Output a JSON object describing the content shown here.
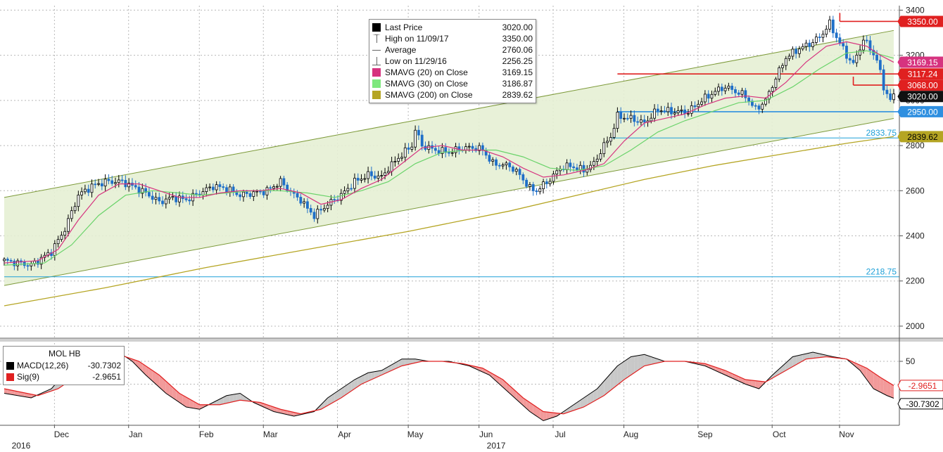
{
  "chart_data": {
    "type": "candlestick",
    "ticker": "MOL HB",
    "colors": {
      "up": "#000000",
      "down": "#1f6fc8",
      "sma20": "#d6337f",
      "sma30": "#6ad36a",
      "sma200": "#b5a523",
      "channel_fill": "#e6efd4",
      "channel_line": "#7d9a3a",
      "hline_red": "#e02020",
      "hline_blue": "#2e8fe0",
      "fib_text": "#1ea0d8",
      "macd_line": "#000000",
      "sig_line": "#e02020"
    },
    "price_axis": {
      "min": 1950,
      "max": 3420,
      "ticks": [
        "3400",
        "3200",
        "3000",
        "2800",
        "2600",
        "2400",
        "2200",
        "2000"
      ],
      "tick_values": [
        3400,
        3200,
        3000,
        2800,
        2600,
        2400,
        2200,
        2000
      ]
    },
    "time_axis": {
      "months": [
        "Dec",
        "Jan",
        "Feb",
        "Mar",
        "Apr",
        "May",
        "Jun",
        "Jul",
        "Aug",
        "Sep",
        "Oct",
        "Nov"
      ],
      "month_index": [
        17,
        39,
        60,
        79,
        101,
        122,
        143,
        165,
        186,
        208,
        230,
        250
      ],
      "years": [
        "2016",
        "2017"
      ],
      "year_index": [
        5,
        146
      ],
      "total_days": 265
    },
    "close_path": [
      [
        0,
        2290
      ],
      [
        8,
        2270
      ],
      [
        14,
        2330
      ],
      [
        18,
        2430
      ],
      [
        22,
        2580
      ],
      [
        26,
        2620
      ],
      [
        30,
        2640
      ],
      [
        35,
        2640
      ],
      [
        38,
        2620
      ],
      [
        42,
        2590
      ],
      [
        46,
        2550
      ],
      [
        50,
        2570
      ],
      [
        54,
        2560
      ],
      [
        58,
        2590
      ],
      [
        62,
        2620
      ],
      [
        66,
        2610
      ],
      [
        70,
        2580
      ],
      [
        74,
        2590
      ],
      [
        78,
        2600
      ],
      [
        82,
        2640
      ],
      [
        86,
        2580
      ],
      [
        88,
        2560
      ],
      [
        90,
        2520
      ],
      [
        92,
        2490
      ],
      [
        96,
        2540
      ],
      [
        100,
        2580
      ],
      [
        104,
        2640
      ],
      [
        108,
        2670
      ],
      [
        112,
        2660
      ],
      [
        114,
        2700
      ],
      [
        118,
        2760
      ],
      [
        121,
        2800
      ],
      [
        122,
        2870
      ],
      [
        124,
        2800
      ],
      [
        128,
        2780
      ],
      [
        132,
        2770
      ],
      [
        136,
        2790
      ],
      [
        140,
        2790
      ],
      [
        142,
        2780
      ],
      [
        145,
        2720
      ],
      [
        150,
        2710
      ],
      [
        153,
        2670
      ],
      [
        156,
        2610
      ],
      [
        158,
        2600
      ],
      [
        162,
        2650
      ],
      [
        165,
        2700
      ],
      [
        168,
        2710
      ],
      [
        172,
        2690
      ],
      [
        175,
        2720
      ],
      [
        178,
        2800
      ],
      [
        180,
        2840
      ],
      [
        182,
        2930
      ],
      [
        186,
        2920
      ],
      [
        190,
        2900
      ],
      [
        194,
        2960
      ],
      [
        198,
        2950
      ],
      [
        203,
        2950
      ],
      [
        207,
        3000
      ],
      [
        211,
        3040
      ],
      [
        214,
        3060
      ],
      [
        217,
        3040
      ],
      [
        220,
        3020
      ],
      [
        223,
        2960
      ],
      [
        226,
        3000
      ],
      [
        229,
        3100
      ],
      [
        232,
        3190
      ],
      [
        236,
        3230
      ],
      [
        239,
        3250
      ],
      [
        242,
        3280
      ],
      [
        245,
        3340
      ],
      [
        247,
        3280
      ],
      [
        250,
        3200
      ],
      [
        252,
        3160
      ],
      [
        255,
        3270
      ],
      [
        257,
        3230
      ],
      [
        259,
        3180
      ],
      [
        261,
        3060
      ],
      [
        263,
        3000
      ],
      [
        264,
        3020
      ]
    ],
    "sma20_path": [
      [
        0,
        2280
      ],
      [
        10,
        2290
      ],
      [
        16,
        2340
      ],
      [
        22,
        2470
      ],
      [
        28,
        2580
      ],
      [
        34,
        2630
      ],
      [
        40,
        2630
      ],
      [
        46,
        2600
      ],
      [
        52,
        2570
      ],
      [
        58,
        2570
      ],
      [
        64,
        2590
      ],
      [
        70,
        2600
      ],
      [
        76,
        2600
      ],
      [
        82,
        2610
      ],
      [
        88,
        2590
      ],
      [
        94,
        2540
      ],
      [
        100,
        2560
      ],
      [
        106,
        2610
      ],
      [
        112,
        2650
      ],
      [
        118,
        2720
      ],
      [
        124,
        2790
      ],
      [
        130,
        2800
      ],
      [
        136,
        2780
      ],
      [
        142,
        2780
      ],
      [
        148,
        2750
      ],
      [
        154,
        2700
      ],
      [
        160,
        2660
      ],
      [
        166,
        2670
      ],
      [
        172,
        2690
      ],
      [
        178,
        2720
      ],
      [
        184,
        2820
      ],
      [
        190,
        2900
      ],
      [
        196,
        2920
      ],
      [
        202,
        2940
      ],
      [
        208,
        2980
      ],
      [
        214,
        3010
      ],
      [
        220,
        3020
      ],
      [
        226,
        3010
      ],
      [
        232,
        3080
      ],
      [
        238,
        3170
      ],
      [
        244,
        3240
      ],
      [
        250,
        3260
      ],
      [
        256,
        3240
      ],
      [
        260,
        3200
      ],
      [
        264,
        3169
      ]
    ],
    "sma30_path": [
      [
        0,
        2270
      ],
      [
        12,
        2280
      ],
      [
        20,
        2360
      ],
      [
        28,
        2490
      ],
      [
        36,
        2580
      ],
      [
        44,
        2600
      ],
      [
        52,
        2590
      ],
      [
        58,
        2580
      ],
      [
        66,
        2590
      ],
      [
        74,
        2600
      ],
      [
        82,
        2600
      ],
      [
        90,
        2590
      ],
      [
        98,
        2570
      ],
      [
        106,
        2600
      ],
      [
        114,
        2640
      ],
      [
        122,
        2720
      ],
      [
        130,
        2770
      ],
      [
        138,
        2780
      ],
      [
        146,
        2780
      ],
      [
        154,
        2750
      ],
      [
        162,
        2700
      ],
      [
        170,
        2690
      ],
      [
        178,
        2710
      ],
      [
        186,
        2780
      ],
      [
        194,
        2860
      ],
      [
        202,
        2910
      ],
      [
        210,
        2950
      ],
      [
        218,
        2990
      ],
      [
        226,
        3000
      ],
      [
        234,
        3060
      ],
      [
        242,
        3140
      ],
      [
        250,
        3210
      ],
      [
        256,
        3220
      ],
      [
        264,
        3187
      ]
    ],
    "sma200_path": [
      [
        0,
        2090
      ],
      [
        30,
        2170
      ],
      [
        60,
        2260
      ],
      [
        90,
        2340
      ],
      [
        120,
        2420
      ],
      [
        150,
        2510
      ],
      [
        170,
        2580
      ],
      [
        190,
        2650
      ],
      [
        210,
        2710
      ],
      [
        230,
        2760
      ],
      [
        250,
        2810
      ],
      [
        264,
        2840
      ]
    ],
    "channel": {
      "upper": [
        [
          0,
          2570
        ],
        [
          264,
          3310
        ]
      ],
      "lower": [
        [
          0,
          2180
        ],
        [
          264,
          2920
        ]
      ]
    },
    "hlines": [
      {
        "value": 3350,
        "from": 248,
        "color": "red"
      },
      {
        "value": 3117.24,
        "from": 182,
        "color": "red"
      },
      {
        "value": 3068,
        "from": 252,
        "color": "red"
      },
      {
        "value": 2950,
        "from": 182,
        "color": "blue"
      },
      {
        "value": 2833.75,
        "from": 180,
        "color": "fib"
      },
      {
        "value": 2218.75,
        "from": 0,
        "color": "fib"
      }
    ],
    "fib_labels": [
      {
        "text": "2833.75",
        "value": 2833.75
      },
      {
        "text": "2218.75",
        "value": 2218.75
      }
    ],
    "tags": [
      {
        "text": "3350.00",
        "value": 3350,
        "bg": "#e02020",
        "fg": "#ffffff"
      },
      {
        "text": "3169.15",
        "value": 3169.15,
        "bg": "#d6337f",
        "fg": "#ffffff"
      },
      {
        "text": "3117.24",
        "value": 3117.24,
        "bg": "#e02020",
        "fg": "#ffffff"
      },
      {
        "text": "3068.00",
        "value": 3068,
        "bg": "#e02020",
        "fg": "#ffffff"
      },
      {
        "text": "3020.00",
        "value": 3020,
        "bg": "#111111",
        "fg": "#ffffff"
      },
      {
        "text": "2950.00",
        "value": 2950,
        "bg": "#2e8fe0",
        "fg": "#ffffff"
      },
      {
        "text": "2839.62",
        "value": 2839.62,
        "bg": "#b5a523",
        "fg": "#000000"
      }
    ],
    "macd_axis": {
      "min": -90,
      "max": 90,
      "ticks": [
        "50"
      ],
      "tick_values": [
        50
      ]
    },
    "macd_path": [
      [
        0,
        -20
      ],
      [
        8,
        -30
      ],
      [
        14,
        -10
      ],
      [
        20,
        40
      ],
      [
        26,
        70
      ],
      [
        30,
        75
      ],
      [
        34,
        70
      ],
      [
        38,
        50
      ],
      [
        42,
        20
      ],
      [
        48,
        -20
      ],
      [
        54,
        -50
      ],
      [
        58,
        -55
      ],
      [
        62,
        -40
      ],
      [
        66,
        -25
      ],
      [
        70,
        -20
      ],
      [
        74,
        -40
      ],
      [
        80,
        -60
      ],
      [
        86,
        -70
      ],
      [
        92,
        -60
      ],
      [
        96,
        -30
      ],
      [
        100,
        -10
      ],
      [
        104,
        10
      ],
      [
        108,
        25
      ],
      [
        112,
        30
      ],
      [
        118,
        55
      ],
      [
        122,
        55
      ],
      [
        126,
        50
      ],
      [
        132,
        50
      ],
      [
        138,
        40
      ],
      [
        144,
        20
      ],
      [
        150,
        -20
      ],
      [
        156,
        -60
      ],
      [
        160,
        -80
      ],
      [
        164,
        -70
      ],
      [
        168,
        -50
      ],
      [
        172,
        -30
      ],
      [
        176,
        -10
      ],
      [
        182,
        40
      ],
      [
        186,
        60
      ],
      [
        190,
        65
      ],
      [
        196,
        50
      ],
      [
        202,
        50
      ],
      [
        208,
        40
      ],
      [
        214,
        20
      ],
      [
        220,
        0
      ],
      [
        224,
        -10
      ],
      [
        228,
        20
      ],
      [
        234,
        60
      ],
      [
        240,
        70
      ],
      [
        246,
        60
      ],
      [
        250,
        55
      ],
      [
        254,
        30
      ],
      [
        258,
        -10
      ],
      [
        262,
        -25
      ],
      [
        264,
        -30.7302
      ]
    ],
    "sig_path": [
      [
        0,
        -10
      ],
      [
        10,
        -25
      ],
      [
        16,
        -10
      ],
      [
        22,
        20
      ],
      [
        28,
        55
      ],
      [
        34,
        65
      ],
      [
        40,
        50
      ],
      [
        46,
        20
      ],
      [
        52,
        -20
      ],
      [
        58,
        -45
      ],
      [
        64,
        -45
      ],
      [
        70,
        -35
      ],
      [
        76,
        -40
      ],
      [
        82,
        -55
      ],
      [
        88,
        -65
      ],
      [
        94,
        -55
      ],
      [
        100,
        -30
      ],
      [
        106,
        0
      ],
      [
        112,
        20
      ],
      [
        118,
        40
      ],
      [
        124,
        50
      ],
      [
        130,
        50
      ],
      [
        136,
        45
      ],
      [
        142,
        35
      ],
      [
        148,
        10
      ],
      [
        154,
        -30
      ],
      [
        160,
        -60
      ],
      [
        166,
        -65
      ],
      [
        172,
        -50
      ],
      [
        178,
        -25
      ],
      [
        184,
        10
      ],
      [
        190,
        40
      ],
      [
        196,
        50
      ],
      [
        202,
        50
      ],
      [
        208,
        45
      ],
      [
        214,
        30
      ],
      [
        220,
        10
      ],
      [
        226,
        5
      ],
      [
        232,
        30
      ],
      [
        238,
        55
      ],
      [
        244,
        60
      ],
      [
        250,
        55
      ],
      [
        256,
        35
      ],
      [
        260,
        15
      ],
      [
        264,
        -2.9651
      ]
    ],
    "macd_tags": [
      {
        "text": "-2.9651",
        "value": -2.9651,
        "bg": "#ffffff",
        "fg": "#e02020",
        "border": "#e02020"
      },
      {
        "text": "-30.7302",
        "value": -30.7302,
        "bg": "#ffffff",
        "fg": "#000000",
        "border": "#000000"
      }
    ]
  },
  "legend": {
    "rows": [
      {
        "label": "Last Price",
        "value": "3020.00",
        "sym": "square",
        "color": "#000000"
      },
      {
        "label": "High on 11/09/17",
        "value": "3350.00",
        "sym": "high",
        "color": "#666666"
      },
      {
        "label": "Average",
        "value": "2760.06",
        "sym": "avg",
        "color": "#666666"
      },
      {
        "label": "Low on 11/29/16",
        "value": "2256.25",
        "sym": "low",
        "color": "#666666"
      },
      {
        "label": "SMAVG (20)  on Close",
        "value": "3169.15",
        "sym": "square",
        "color": "#d6337f"
      },
      {
        "label": "SMAVG (30)  on Close",
        "value": "3186.87",
        "sym": "square",
        "color": "#7ee87e"
      },
      {
        "label": "SMAVG (200)  on Close",
        "value": "2839.62",
        "sym": "square",
        "color": "#b5a523"
      }
    ]
  },
  "macd_legend": {
    "title": "MOL HB",
    "rows": [
      {
        "label": "MACD(12,26)",
        "value": "-30.7302",
        "color": "#000000"
      },
      {
        "label": "Sig(9)",
        "value": "-2.9651",
        "color": "#e02020"
      }
    ]
  }
}
